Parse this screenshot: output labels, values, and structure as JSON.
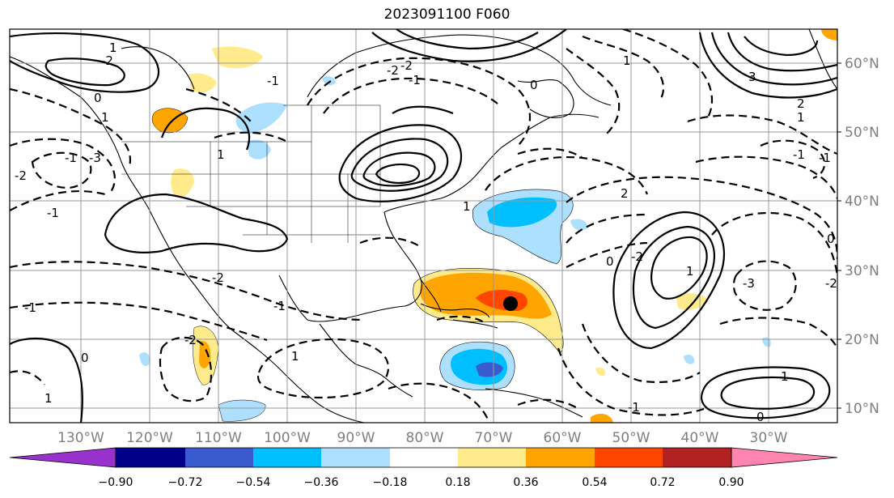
{
  "title": "2023091100 F060",
  "map": {
    "latitude_labels": [
      "60°N",
      "50°N",
      "40°N",
      "30°N",
      "20°N",
      "10°N"
    ],
    "longitude_labels": [
      "130°W",
      "120°W",
      "110°W",
      "100°W",
      "90°W",
      "80°W",
      "70°W",
      "60°W",
      "50°W",
      "40°W",
      "30°W"
    ],
    "contour_labels": [
      "-2",
      "1",
      "0",
      "1",
      "-1",
      "-2",
      "-1",
      "-3",
      "1",
      "-1",
      "-2",
      "2",
      "1",
      "0",
      "1",
      "-1",
      "-2",
      "-2",
      "-1",
      "-2",
      "0",
      "1",
      "-1",
      "1",
      "0",
      "-2",
      "-3",
      "3",
      "2",
      "-1",
      "1",
      "1",
      "0",
      "-2",
      "0",
      "-1",
      "-1",
      "1"
    ],
    "storm_marker": "black-dot"
  },
  "colorbar": {
    "colors": [
      "#9932cc",
      "#00008b",
      "#3a5bd0",
      "#00bfff",
      "#addfff",
      "#ffffff",
      "#ffeb8c",
      "#ffa500",
      "#ff4500",
      "#b22222",
      "#ff85b0"
    ],
    "tick_labels": [
      "−0.90",
      "−0.72",
      "−0.54",
      "−0.36",
      "−0.18",
      "0.18",
      "0.36",
      "0.54",
      "0.72",
      "0.90"
    ]
  }
}
